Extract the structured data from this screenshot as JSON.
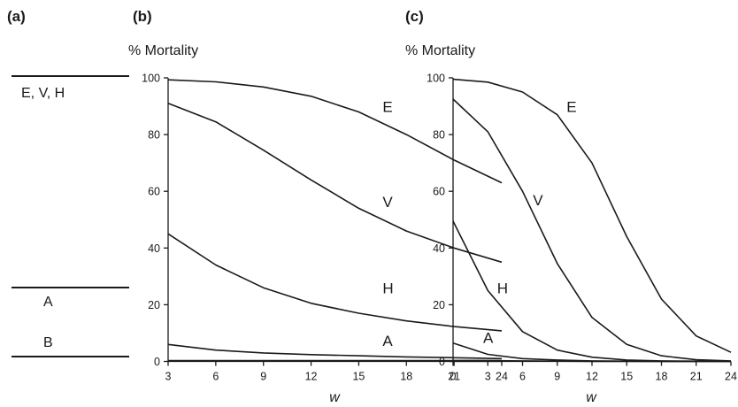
{
  "panel_a": {
    "letter": "(a)",
    "levels": [
      {
        "label": "E, V, H"
      },
      {
        "label": "A"
      },
      {
        "label": "B"
      }
    ]
  },
  "chart_data": [
    {
      "type": "line",
      "panel": "(b)",
      "ylabel": "% Mortality",
      "xlabel": "w",
      "xlim": [
        3,
        24
      ],
      "ylim": [
        0,
        100
      ],
      "xticks": [
        "3",
        "6",
        "9",
        "12",
        "15",
        "18",
        "21",
        "24"
      ],
      "yticks": [
        "0",
        "20",
        "40",
        "60",
        "80",
        "100"
      ],
      "grid": false,
      "x": [
        3,
        6,
        9,
        12,
        15,
        18,
        21,
        24
      ],
      "series": [
        {
          "name": "E",
          "values": [
            99.3,
            98.6,
            96.8,
            93.5,
            88,
            80,
            71,
            63
          ],
          "label_at": [
            16.5,
            88
          ]
        },
        {
          "name": "V",
          "values": [
            91,
            84.5,
            74.5,
            64,
            54,
            46,
            40,
            35
          ],
          "label_at": [
            16.5,
            54.5
          ]
        },
        {
          "name": "H",
          "values": [
            45,
            34,
            26,
            20.5,
            17,
            14.3,
            12.3,
            10.8
          ],
          "label_at": [
            16.5,
            24
          ]
        },
        {
          "name": "A",
          "values": [
            6,
            4,
            3,
            2.4,
            2,
            1.6,
            1.3,
            1
          ],
          "label_at": [
            16.5,
            5.5
          ]
        },
        {
          "name": "",
          "values": [
            0.3,
            0.3,
            0.3,
            0.3,
            0.3,
            0.3,
            0.3,
            0.3
          ]
        }
      ]
    },
    {
      "type": "line",
      "panel": "(c)",
      "ylabel": "% Mortality",
      "xlabel": "w",
      "xlim": [
        0,
        24
      ],
      "ylim": [
        0,
        100
      ],
      "xticks": [
        "0",
        "3",
        "6",
        "9",
        "12",
        "15",
        "18",
        "21",
        "24"
      ],
      "yticks": [
        "0",
        "20",
        "40",
        "60",
        "80",
        "100"
      ],
      "grid": false,
      "x": [
        0,
        3,
        6,
        9,
        12,
        15,
        18,
        21,
        24
      ],
      "series": [
        {
          "name": "E",
          "values": [
            99.5,
            98.5,
            95,
            87,
            70,
            44,
            22,
            9,
            3.2
          ],
          "label_at": [
            9.8,
            88
          ]
        },
        {
          "name": "V",
          "values": [
            92.5,
            81,
            60,
            34.5,
            15.5,
            6,
            2,
            0.6,
            0.2
          ],
          "label_at": [
            6.9,
            55
          ]
        },
        {
          "name": "H",
          "values": [
            49.5,
            25,
            10.5,
            4,
            1.5,
            0.5,
            0.2,
            0.1,
            0
          ],
          "label_at": [
            3.8,
            24
          ]
        },
        {
          "name": "A",
          "values": [
            6.5,
            2.5,
            1,
            0.5,
            0.2,
            0.1,
            0,
            0,
            0
          ],
          "label_at": [
            2.6,
            6.5
          ]
        },
        {
          "name": "",
          "values": [
            0.3,
            0.3,
            0.2,
            0.1,
            0,
            0,
            0,
            0,
            0
          ]
        }
      ]
    }
  ]
}
